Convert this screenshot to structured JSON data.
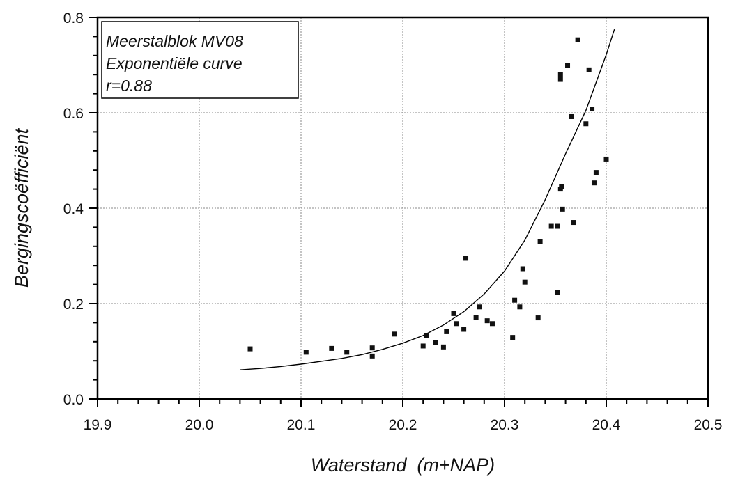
{
  "chart_data": {
    "type": "scatter",
    "title": "",
    "xlabel": "Waterstand  (m+NAP)",
    "ylabel": "Bergingscoëfficiënt",
    "xlim": [
      19.9,
      20.5
    ],
    "ylim": [
      0.0,
      0.8
    ],
    "x_ticks": [
      "19.9",
      "20.0",
      "20.1",
      "20.2",
      "20.3",
      "20.4",
      "20.5"
    ],
    "y_ticks": [
      "0.0",
      "0.2",
      "0.4",
      "0.6",
      "0.8"
    ],
    "grid": true,
    "legend_position": "top-left",
    "annotation_lines": [
      "Meerstalblok MV08",
      "Exponentiële curve",
      "r=0.88"
    ],
    "series": [
      {
        "marker": "square",
        "points": [
          [
            20.05,
            0.105
          ],
          [
            20.105,
            0.098
          ],
          [
            20.13,
            0.106
          ],
          [
            20.145,
            0.098
          ],
          [
            20.17,
            0.107
          ],
          [
            20.17,
            0.09
          ],
          [
            20.192,
            0.136
          ],
          [
            20.22,
            0.111
          ],
          [
            20.223,
            0.133
          ],
          [
            20.232,
            0.118
          ],
          [
            20.24,
            0.109
          ],
          [
            20.243,
            0.141
          ],
          [
            20.25,
            0.179
          ],
          [
            20.253,
            0.158
          ],
          [
            20.26,
            0.146
          ],
          [
            20.262,
            0.295
          ],
          [
            20.272,
            0.171
          ],
          [
            20.275,
            0.193
          ],
          [
            20.283,
            0.164
          ],
          [
            20.288,
            0.158
          ],
          [
            20.308,
            0.129
          ],
          [
            20.31,
            0.207
          ],
          [
            20.315,
            0.193
          ],
          [
            20.318,
            0.273
          ],
          [
            20.32,
            0.245
          ],
          [
            20.333,
            0.17
          ],
          [
            20.335,
            0.33
          ],
          [
            20.346,
            0.362
          ],
          [
            20.352,
            0.362
          ],
          [
            20.352,
            0.224
          ],
          [
            20.355,
            0.44
          ],
          [
            20.356,
            0.445
          ],
          [
            20.355,
            0.67
          ],
          [
            20.355,
            0.68
          ],
          [
            20.357,
            0.398
          ],
          [
            20.362,
            0.7
          ],
          [
            20.366,
            0.592
          ],
          [
            20.368,
            0.37
          ],
          [
            20.372,
            0.753
          ],
          [
            20.38,
            0.577
          ],
          [
            20.383,
            0.69
          ],
          [
            20.386,
            0.608
          ],
          [
            20.388,
            0.453
          ],
          [
            20.39,
            0.475
          ],
          [
            20.4,
            0.503
          ]
        ]
      }
    ],
    "fit_curve": {
      "model": "exponential",
      "x_range": [
        20.04,
        20.408
      ],
      "points": [
        [
          20.04,
          0.061
        ],
        [
          20.06,
          0.064
        ],
        [
          20.08,
          0.068
        ],
        [
          20.1,
          0.073
        ],
        [
          20.12,
          0.079
        ],
        [
          20.14,
          0.085
        ],
        [
          20.16,
          0.093
        ],
        [
          20.18,
          0.104
        ],
        [
          20.2,
          0.117
        ],
        [
          20.22,
          0.133
        ],
        [
          20.24,
          0.155
        ],
        [
          20.26,
          0.183
        ],
        [
          20.28,
          0.22
        ],
        [
          20.3,
          0.268
        ],
        [
          20.32,
          0.333
        ],
        [
          20.34,
          0.418
        ],
        [
          20.36,
          0.514
        ],
        [
          20.38,
          0.605
        ],
        [
          20.4,
          0.722
        ],
        [
          20.408,
          0.775
        ]
      ]
    }
  }
}
